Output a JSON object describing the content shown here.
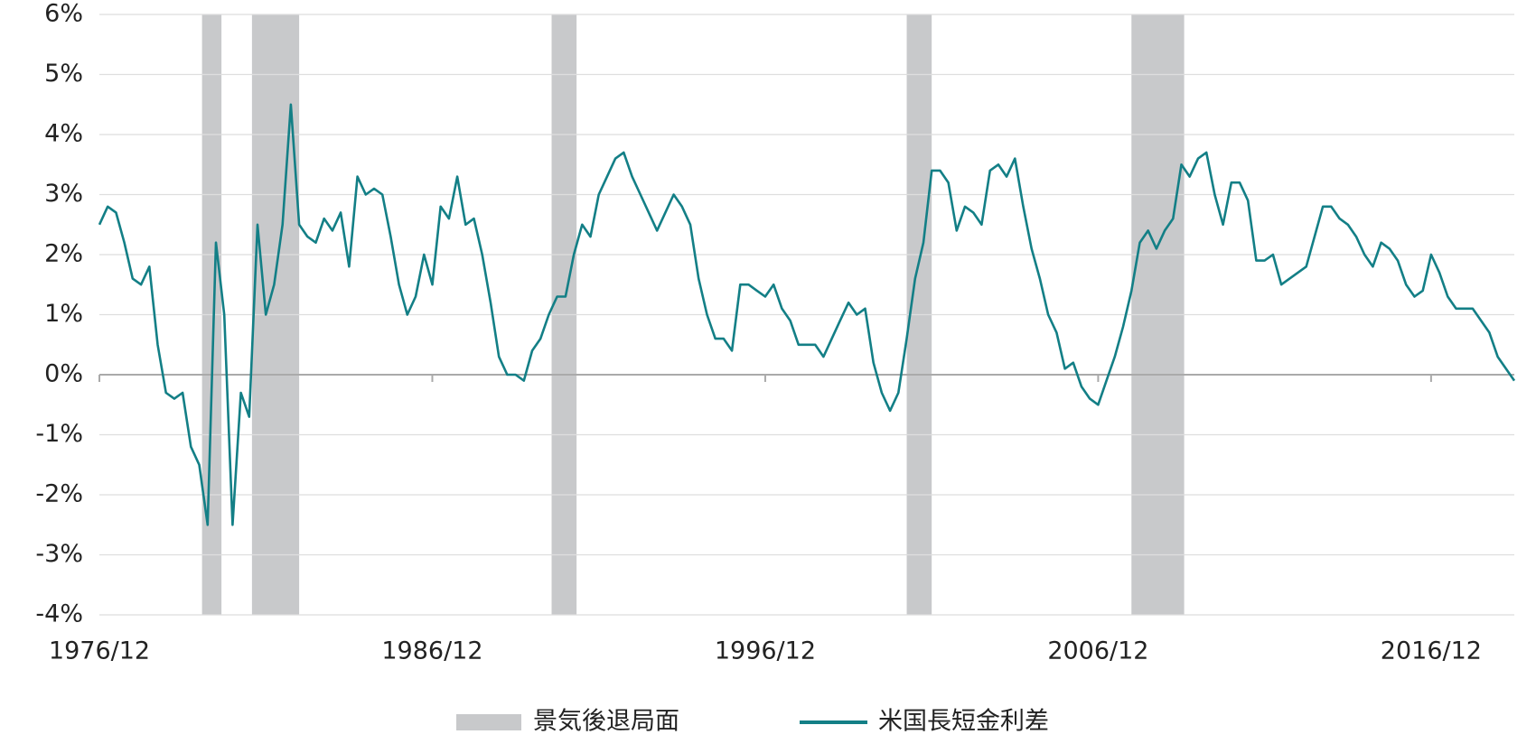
{
  "chart_data": {
    "type": "line",
    "x": [
      "1976/12",
      "1977/03",
      "1977/06",
      "1977/09",
      "1977/12",
      "1978/03",
      "1978/06",
      "1978/09",
      "1978/12",
      "1979/03",
      "1979/06",
      "1979/09",
      "1979/12",
      "1980/03",
      "1980/06",
      "1980/09",
      "1980/12",
      "1981/03",
      "1981/06",
      "1981/09",
      "1981/12",
      "1982/03",
      "1982/06",
      "1982/09",
      "1982/12",
      "1983/03",
      "1983/06",
      "1983/09",
      "1983/12",
      "1984/03",
      "1984/06",
      "1984/09",
      "1984/12",
      "1985/03",
      "1985/06",
      "1985/09",
      "1985/12",
      "1986/03",
      "1986/06",
      "1986/09",
      "1986/12",
      "1987/03",
      "1987/06",
      "1987/09",
      "1987/12",
      "1988/03",
      "1988/06",
      "1988/09",
      "1988/12",
      "1989/03",
      "1989/06",
      "1989/09",
      "1989/12",
      "1990/03",
      "1990/06",
      "1990/09",
      "1990/12",
      "1991/03",
      "1991/06",
      "1991/09",
      "1991/12",
      "1992/03",
      "1992/06",
      "1992/09",
      "1992/12",
      "1993/03",
      "1993/06",
      "1993/09",
      "1993/12",
      "1994/03",
      "1994/06",
      "1994/09",
      "1994/12",
      "1995/03",
      "1995/06",
      "1995/09",
      "1995/12",
      "1996/03",
      "1996/06",
      "1996/09",
      "1996/12",
      "1997/03",
      "1997/06",
      "1997/09",
      "1997/12",
      "1998/03",
      "1998/06",
      "1998/09",
      "1998/12",
      "1999/03",
      "1999/06",
      "1999/09",
      "1999/12",
      "2000/03",
      "2000/06",
      "2000/09",
      "2000/12",
      "2001/03",
      "2001/06",
      "2001/09",
      "2001/12",
      "2002/03",
      "2002/06",
      "2002/09",
      "2002/12",
      "2003/03",
      "2003/06",
      "2003/09",
      "2003/12",
      "2004/03",
      "2004/06",
      "2004/09",
      "2004/12",
      "2005/03",
      "2005/06",
      "2005/09",
      "2005/12",
      "2006/03",
      "2006/06",
      "2006/09",
      "2006/12",
      "2007/03",
      "2007/06",
      "2007/09",
      "2007/12",
      "2008/03",
      "2008/06",
      "2008/09",
      "2008/12",
      "2009/03",
      "2009/06",
      "2009/09",
      "2009/12",
      "2010/03",
      "2010/06",
      "2010/09",
      "2010/12",
      "2011/03",
      "2011/06",
      "2011/09",
      "2011/12",
      "2012/03",
      "2012/06",
      "2012/09",
      "2012/12",
      "2013/03",
      "2013/06",
      "2013/09",
      "2013/12",
      "2014/03",
      "2014/06",
      "2014/09",
      "2014/12",
      "2015/03",
      "2015/06",
      "2015/09",
      "2015/12",
      "2016/03",
      "2016/06",
      "2016/09",
      "2016/12",
      "2017/03",
      "2017/06",
      "2017/09",
      "2017/12",
      "2018/03",
      "2018/06",
      "2018/09",
      "2018/12",
      "2019/03",
      "2019/06"
    ],
    "series": [
      {
        "name": "米国長短金利差",
        "color": "#137f86",
        "values": [
          2.5,
          2.8,
          2.7,
          2.2,
          1.6,
          1.5,
          1.8,
          0.5,
          -0.3,
          -0.4,
          -0.3,
          -1.2,
          -1.5,
          -2.5,
          2.2,
          1.0,
          -2.5,
          -0.3,
          -0.7,
          2.5,
          1.0,
          1.5,
          2.5,
          4.5,
          2.5,
          2.3,
          2.2,
          2.6,
          2.4,
          2.7,
          1.8,
          3.3,
          3.0,
          3.1,
          3.0,
          2.3,
          1.5,
          1.0,
          1.3,
          2.0,
          1.5,
          2.8,
          2.6,
          3.3,
          2.5,
          2.6,
          2.0,
          1.2,
          0.3,
          0.0,
          0.0,
          -0.1,
          0.4,
          0.6,
          1.0,
          1.3,
          1.3,
          2.0,
          2.5,
          2.3,
          3.0,
          3.3,
          3.6,
          3.7,
          3.3,
          3.0,
          2.7,
          2.4,
          2.7,
          3.0,
          2.8,
          2.5,
          1.6,
          1.0,
          0.6,
          0.6,
          0.4,
          1.5,
          1.5,
          1.4,
          1.3,
          1.5,
          1.1,
          0.9,
          0.5,
          0.5,
          0.5,
          0.3,
          0.6,
          0.9,
          1.2,
          1.0,
          1.1,
          0.2,
          -0.3,
          -0.6,
          -0.3,
          0.6,
          1.6,
          2.2,
          3.4,
          3.4,
          3.2,
          2.4,
          2.8,
          2.7,
          2.5,
          3.4,
          3.5,
          3.3,
          3.6,
          2.8,
          2.1,
          1.6,
          1.0,
          0.7,
          0.1,
          0.2,
          -0.2,
          -0.4,
          -0.5,
          -0.1,
          0.3,
          0.8,
          1.4,
          2.2,
          2.4,
          2.1,
          2.4,
          2.6,
          3.5,
          3.3,
          3.6,
          3.7,
          3.0,
          2.5,
          3.2,
          3.2,
          2.9,
          1.9,
          1.9,
          2.0,
          1.5,
          1.6,
          1.7,
          1.8,
          2.3,
          2.8,
          2.8,
          2.6,
          2.5,
          2.3,
          2.0,
          1.8,
          2.2,
          2.1,
          1.9,
          1.5,
          1.3,
          1.4,
          2.0,
          1.7,
          1.3,
          1.1,
          1.1,
          1.1,
          0.9,
          0.7,
          0.3,
          0.1,
          -0.1
        ]
      }
    ],
    "recessions": {
      "name": "景気後退局面",
      "color": "#c8c9cb",
      "periods": [
        {
          "start": "1980/01",
          "end": "1980/07"
        },
        {
          "start": "1981/07",
          "end": "1982/11"
        },
        {
          "start": "1990/07",
          "end": "1991/03"
        },
        {
          "start": "2001/03",
          "end": "2001/11"
        },
        {
          "start": "2007/12",
          "end": "2009/06"
        }
      ]
    },
    "xticks": [
      "1976/12",
      "1986/12",
      "1996/12",
      "2006/12",
      "2016/12"
    ],
    "ylim": [
      -4,
      6
    ],
    "yticks": [
      {
        "value": -4,
        "label": "-4%"
      },
      {
        "value": -3,
        "label": "-3%"
      },
      {
        "value": -2,
        "label": "-2%"
      },
      {
        "value": -1,
        "label": "-1%"
      },
      {
        "value": 0,
        "label": "0%"
      },
      {
        "value": 1,
        "label": "1%"
      },
      {
        "value": 2,
        "label": "2%"
      },
      {
        "value": 3,
        "label": "3%"
      },
      {
        "value": 4,
        "label": "4%"
      },
      {
        "value": 5,
        "label": "5%"
      },
      {
        "value": 6,
        "label": "6%"
      }
    ],
    "negative_tick_color": "#a3262a",
    "grid": true
  }
}
